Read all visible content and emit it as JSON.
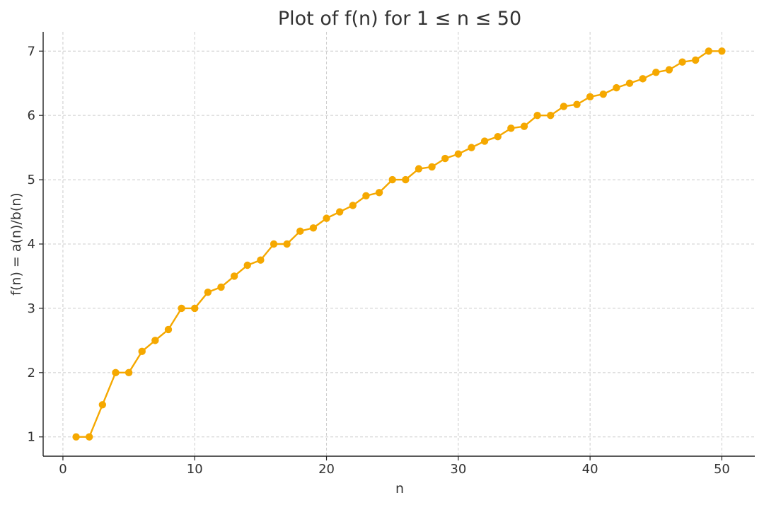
{
  "chart_data": {
    "type": "line",
    "title": "Plot of f(n) for 1 ≤ n ≤ 50",
    "xlabel": "n",
    "ylabel": "f(n) = a(n)/b(n)",
    "xlim": [
      -1.5,
      52.5
    ],
    "ylim": [
      0.7,
      7.3
    ],
    "xticks": [
      0,
      10,
      20,
      30,
      40,
      50
    ],
    "yticks": [
      1,
      2,
      3,
      4,
      5,
      6,
      7
    ],
    "xtick_labels": [
      "0",
      "10",
      "20",
      "30",
      "40",
      "50"
    ],
    "ytick_labels": [
      "1",
      "2",
      "3",
      "4",
      "5",
      "6",
      "7"
    ],
    "grid": true,
    "series": [
      {
        "color": "#f5a800",
        "marker": "circle",
        "x": [
          1,
          2,
          3,
          4,
          5,
          6,
          7,
          8,
          9,
          10,
          11,
          12,
          13,
          14,
          15,
          16,
          17,
          18,
          19,
          20,
          21,
          22,
          23,
          24,
          25,
          26,
          27,
          28,
          29,
          30,
          31,
          32,
          33,
          34,
          35,
          36,
          37,
          38,
          39,
          40,
          41,
          42,
          43,
          44,
          45,
          46,
          47,
          48,
          49,
          50
        ],
        "y": [
          1,
          1,
          1.5,
          2,
          2,
          2.33,
          2.5,
          2.67,
          3,
          3,
          3.25,
          3.33,
          3.5,
          3.67,
          3.75,
          4,
          4,
          4.2,
          4.25,
          4.4,
          4.5,
          4.6,
          4.75,
          4.8,
          5,
          5,
          5.17,
          5.2,
          5.33,
          5.4,
          5.5,
          5.6,
          5.67,
          5.8,
          5.83,
          6,
          6,
          6.14,
          6.17,
          6.29,
          6.33,
          6.43,
          6.5,
          6.57,
          6.67,
          6.71,
          6.83,
          6.86,
          7,
          7
        ]
      }
    ]
  }
}
